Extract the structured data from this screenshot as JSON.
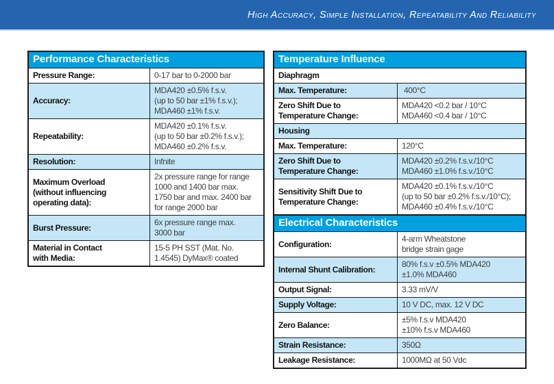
{
  "banner": {
    "tagline": "High Accuracy, Simple Installation, Repeatability And Reliability"
  },
  "colors": {
    "banner_bg": "#2565af",
    "section_header_bg": "#009fe0",
    "shaded_row_bg": "#c5e6f6",
    "table_border": "#1a1a1a"
  },
  "performance": {
    "title": "Performance Characteristics",
    "rows": [
      {
        "label": "Pressure Range:",
        "value": "0-17 bar to 0-2000 bar"
      },
      {
        "label": "Accuracy:",
        "value": "MDA420 ±0.5% f.s.v.\n(up to 50 bar ±1% f.s.v.);\nMDA460 ±1% f.s.v."
      },
      {
        "label": "Repeatability:",
        "value": "MDA420 ±0.1% f.s.v.\n(up to 50 bar ±0.2% f.s.v.);\nMDA460 ±0.2% f.s.v."
      },
      {
        "label": "Resolution:",
        "value": "Infnite"
      },
      {
        "label": "Maximum Overload\n(without influencing\noperating data):",
        "value": "2x pressure range for range\n1000 and 1400 bar max.\n1750 bar and max. 2400 bar\nfor range 2000 bar"
      },
      {
        "label": "Burst Pressure:",
        "value": "6x pressure range max.\n3000 bar"
      },
      {
        "label": "Material in Contact\nwith Media:",
        "value": "15-5 PH SST (Mat. No.\n1.4545) DyMax® coated"
      }
    ]
  },
  "temperature": {
    "title": "Temperature Influence",
    "rows": [
      {
        "section": "Diaphragm"
      },
      {
        "label": "Max. Temperature:",
        "value": " 400°C"
      },
      {
        "label": "Zero Shift Due to\nTemperature Change:",
        "value": "MDA420 <0.2 bar / 10°C\nMDA460 <0.4 bar / 10°C"
      },
      {
        "section": "Housing"
      },
      {
        "label": "Max. Temperature:",
        "value": "120°C"
      },
      {
        "label": "Zero Shift Due to\nTemperature Change:",
        "value": "MDA420 ±0.2% f.s.v./10°C\nMDA460 ±1.0% f.s.v./10°C"
      },
      {
        "label": "Sensitivity Shift Due to\nTemperature Change:",
        "value": "MDA420 ±0.1% f.s.v./10°C\n(up to 50 bar ±0.2% f.s.v./10°C);\nMDA460 ±0.4% f.s.v./10°C"
      }
    ]
  },
  "electrical": {
    "title": "Electrical Characteristics",
    "rows": [
      {
        "label": "Configuration:",
        "value": "4-arm Wheatstone\nbridge strain gage"
      },
      {
        "label": "Internal Shunt Calibration:",
        "value": "80% f.s.v ±0.5% MDA420\n±1.0% MDA460"
      },
      {
        "label": "Output Signal:",
        "value": "3.33 mV/V"
      },
      {
        "label": "Supply Voltage:",
        "value": "10 V DC, max. 12 V DC"
      },
      {
        "label": "Zero Balance:",
        "value": "±5% f.s.v MDA420\n±10% f.s.v MDA460"
      },
      {
        "label": "Strain Resistance:",
        "value": "350Ω"
      },
      {
        "label": "Leakage Resistance:",
        "value": "1000MΩ at 50 Vdc"
      }
    ]
  }
}
